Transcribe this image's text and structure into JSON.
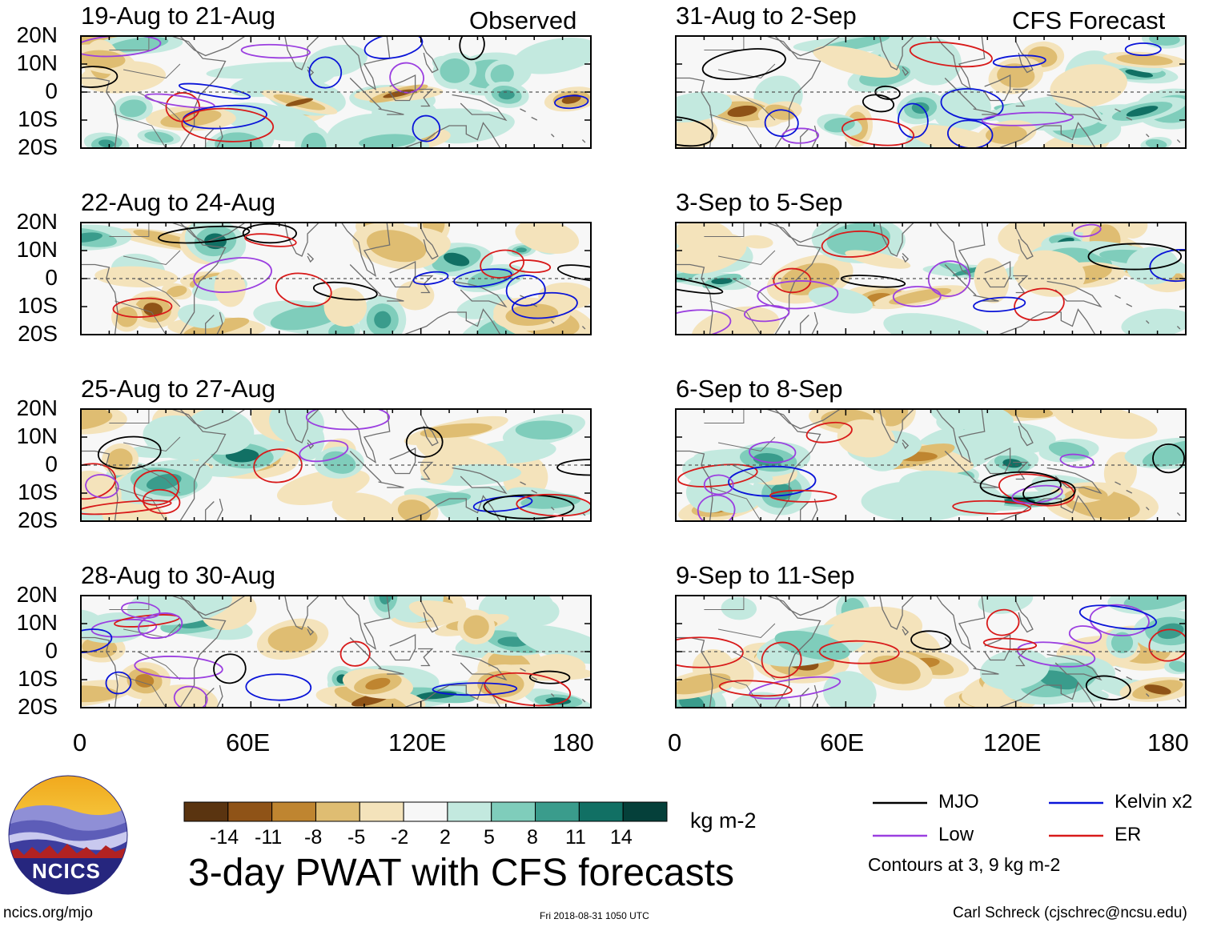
{
  "figure": {
    "title": "3-day PWAT with CFS forecasts",
    "left_column_label": "Observed",
    "right_column_label": "CFS Forecast",
    "website": "ncics.org/mjo",
    "timestamp": "Fri 2018-08-31 1050 UTC",
    "author": "Carl Schreck (cjschrec@ncsu.edu)",
    "logo_text": "NCICS"
  },
  "panels": [
    {
      "label": "19-Aug to 21-Aug",
      "column": "left",
      "row": 0
    },
    {
      "label": "22-Aug to 24-Aug",
      "column": "left",
      "row": 1
    },
    {
      "label": "25-Aug to 27-Aug",
      "column": "left",
      "row": 2
    },
    {
      "label": "28-Aug to 30-Aug",
      "column": "left",
      "row": 3
    },
    {
      "label": "31-Aug to 2-Sep",
      "column": "right",
      "row": 0
    },
    {
      "label": "3-Sep to 5-Sep",
      "column": "right",
      "row": 1
    },
    {
      "label": "6-Sep to 8-Sep",
      "column": "right",
      "row": 2
    },
    {
      "label": "9-Sep to 11-Sep",
      "column": "right",
      "row": 3
    }
  ],
  "axes": {
    "lat_labels": [
      "20N",
      "10N",
      "0",
      "10S",
      "20S"
    ],
    "lon_labels": [
      "0",
      "60E",
      "120E",
      "180"
    ]
  },
  "colorbar": {
    "units": "kg m-2",
    "tick_labels": [
      "-14",
      "-11",
      "-8",
      "-5",
      "-2",
      "2",
      "5",
      "8",
      "11",
      "14"
    ],
    "colors": [
      "#5a3410",
      "#8f5317",
      "#bf8530",
      "#dfbd72",
      "#f4e3bb",
      "#f7f7f7",
      "#c3e9df",
      "#7fcdbb",
      "#3a9c8c",
      "#117064",
      "#05403a"
    ]
  },
  "legend": {
    "items": [
      {
        "label": "MJO",
        "color": "#000000"
      },
      {
        "label": "Kelvin x2",
        "color": "#0a14d8"
      },
      {
        "label": "Low",
        "color": "#9b3fe0"
      },
      {
        "label": "ER",
        "color": "#d81a1a"
      }
    ],
    "note": "Contours at 3, 9 kg m-2"
  }
}
